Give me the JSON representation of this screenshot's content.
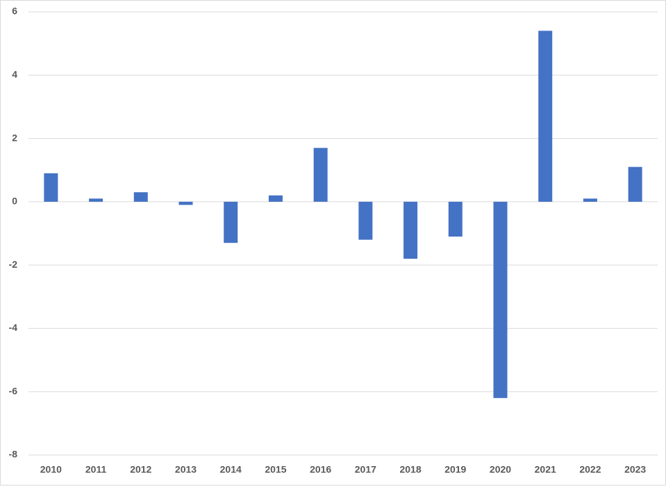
{
  "chart_data": {
    "type": "bar",
    "categories": [
      "2010",
      "2011",
      "2012",
      "2013",
      "2014",
      "2015",
      "2016",
      "2017",
      "2018",
      "2019",
      "2020",
      "2021",
      "2022",
      "2023"
    ],
    "values": [
      0.9,
      0.1,
      0.3,
      -0.1,
      -1.3,
      0.2,
      1.7,
      -1.2,
      -1.8,
      -1.1,
      -6.2,
      5.4,
      0.1,
      1.1
    ],
    "color": "#4472c4",
    "ylim": [
      -8,
      6
    ],
    "yticks": [
      -8,
      -6,
      -4,
      -2,
      0,
      2,
      4,
      6
    ],
    "grid": true
  }
}
